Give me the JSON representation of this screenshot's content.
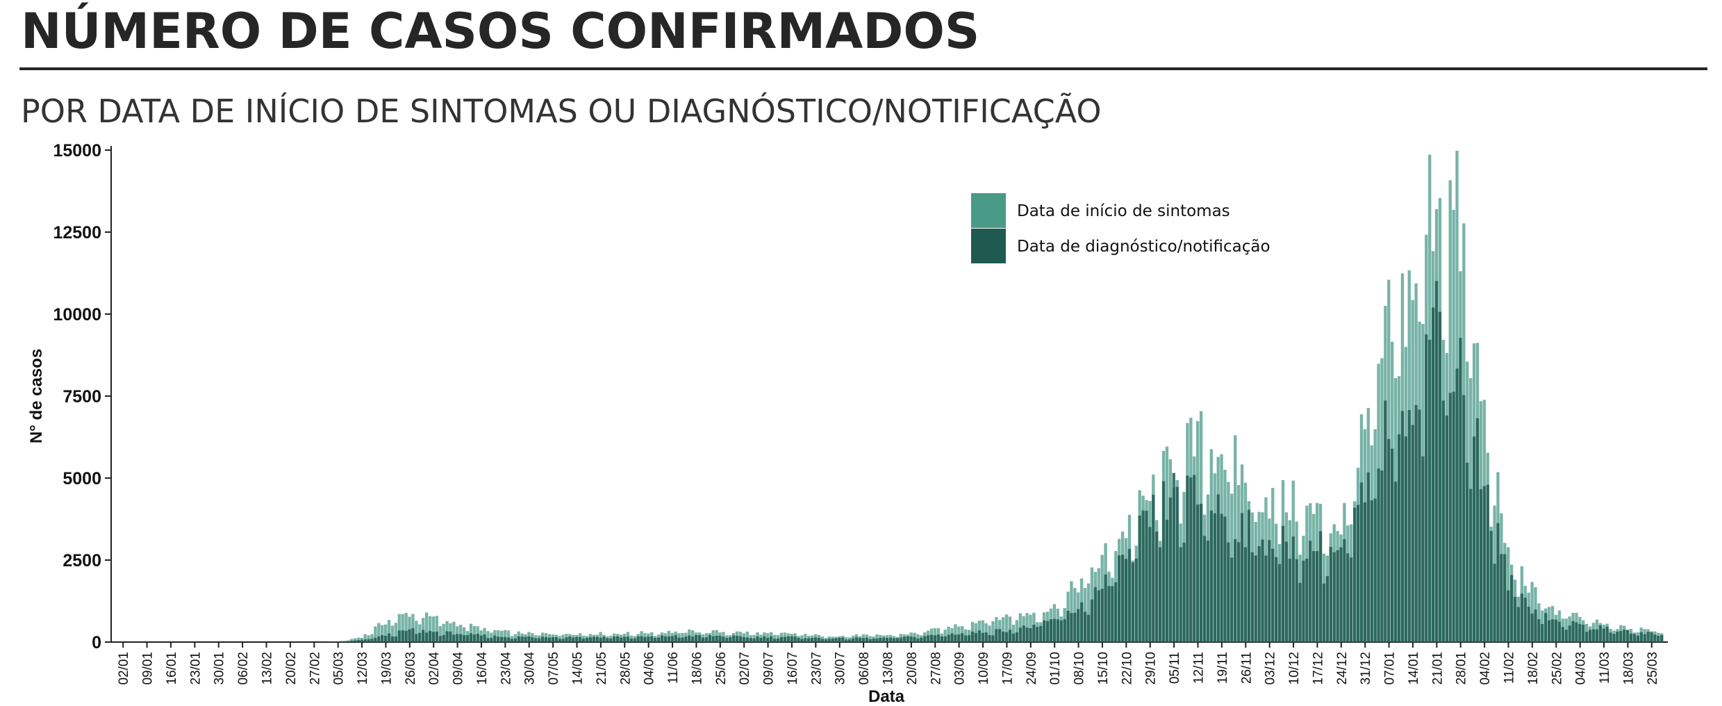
{
  "header": {
    "title": "NÚMERO DE CASOS CONFIRMADOS",
    "subtitle": "POR DATA DE INÍCIO DE SINTOMAS OU DIAGNÓSTICO/NOTIFICAÇÃO"
  },
  "chart_data": {
    "type": "bar",
    "xlabel": "Data",
    "ylabel": "N° de casos",
    "ylim": [
      0,
      15000
    ],
    "yticks": [
      0,
      2500,
      5000,
      7500,
      10000,
      12500,
      15000
    ],
    "xticks": [
      "02/01",
      "09/01",
      "16/01",
      "23/01",
      "30/01",
      "06/02",
      "13/02",
      "20/02",
      "27/02",
      "05/03",
      "12/03",
      "19/03",
      "26/03",
      "02/04",
      "09/04",
      "16/04",
      "23/04",
      "30/04",
      "07/05",
      "14/05",
      "21/05",
      "28/05",
      "04/06",
      "11/06",
      "18/06",
      "25/06",
      "02/07",
      "09/07",
      "16/07",
      "23/07",
      "30/07",
      "06/08",
      "13/08",
      "20/08",
      "27/08",
      "03/09",
      "10/09",
      "17/09",
      "24/09",
      "01/10",
      "08/10",
      "15/10",
      "22/10",
      "29/10",
      "05/11",
      "12/11",
      "19/11",
      "26/11",
      "03/12",
      "10/12",
      "17/12",
      "24/12",
      "31/12",
      "07/01",
      "14/01",
      "21/01",
      "28/01",
      "04/02",
      "11/02",
      "18/02",
      "25/02",
      "04/03",
      "11/03",
      "18/03",
      "25/03"
    ],
    "grid": false,
    "legend_position": "top-right",
    "overlay": true,
    "series": [
      {
        "name": "Data de início de sintomas",
        "color": "#4a9a88",
        "weekly_values": [
          0,
          0,
          0,
          0,
          0,
          0,
          0,
          0,
          0,
          10,
          150,
          600,
          850,
          700,
          550,
          400,
          300,
          250,
          250,
          250,
          250,
          250,
          280,
          300,
          320,
          300,
          280,
          250,
          250,
          200,
          180,
          200,
          200,
          250,
          350,
          500,
          650,
          750,
          850,
          1000,
          1700,
          2400,
          3300,
          4200,
          5200,
          5800,
          5700,
          4700,
          4200,
          4000,
          3700,
          3400,
          6000,
          9000,
          10500,
          13500,
          12000,
          6500,
          2500,
          1500,
          900,
          700,
          500,
          400,
          350
        ]
      },
      {
        "name": "Data de diagnóstico/notificação",
        "color": "#1f5a50",
        "weekly_values": [
          0,
          0,
          0,
          0,
          0,
          0,
          0,
          0,
          0,
          5,
          60,
          200,
          350,
          300,
          250,
          200,
          150,
          150,
          150,
          150,
          150,
          150,
          150,
          180,
          180,
          180,
          150,
          150,
          150,
          120,
          110,
          120,
          120,
          150,
          200,
          250,
          300,
          350,
          450,
          650,
          1000,
          1600,
          2500,
          3600,
          4300,
          4200,
          3900,
          3300,
          3000,
          2800,
          2800,
          2600,
          4200,
          6400,
          7600,
          9500,
          8200,
          4700,
          1800,
          1000,
          600,
          500,
          400,
          300,
          250
        ]
      }
    ]
  }
}
